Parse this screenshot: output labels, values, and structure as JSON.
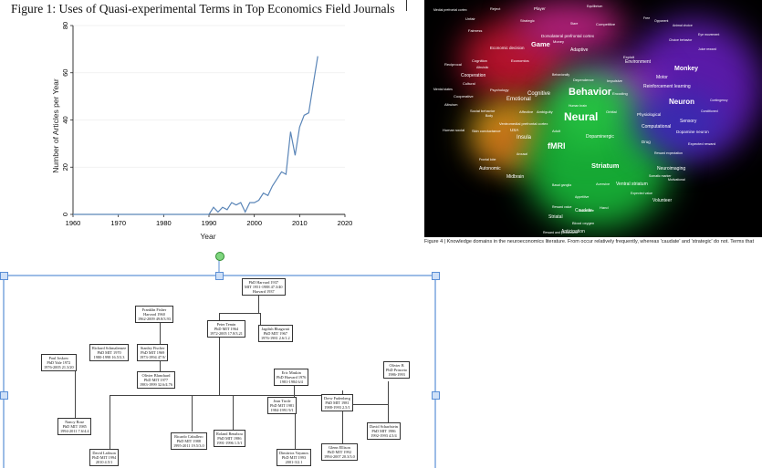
{
  "figure1": {
    "title": "Figure 1: Uses of Quasi-experimental Terms in Top Economics Field Journals",
    "chart_data": {
      "type": "line",
      "xlabel": "Year",
      "ylabel": "Number of Articles per Year",
      "xlim": [
        1960,
        2020
      ],
      "ylim": [
        0,
        80
      ],
      "x_ticks": [
        1960,
        1970,
        1980,
        1990,
        2000,
        2010,
        2020
      ],
      "y_ticks": [
        0,
        20,
        40,
        60,
        80
      ],
      "grid": true,
      "x": [
        1960,
        1965,
        1970,
        1975,
        1980,
        1985,
        1990,
        1991,
        1992,
        1993,
        1994,
        1995,
        1996,
        1997,
        1998,
        1999,
        2000,
        2001,
        2002,
        2003,
        2004,
        2005,
        2006,
        2007,
        2008,
        2009,
        2010,
        2011,
        2012,
        2013,
        2014
      ],
      "values": [
        0,
        0,
        0,
        0,
        0,
        0,
        0,
        3,
        1,
        3,
        2,
        5,
        4,
        5,
        1,
        5,
        5,
        6,
        9,
        8,
        12,
        15,
        18,
        17,
        35,
        25,
        37,
        42,
        43,
        55,
        67
      ]
    }
  },
  "figure2": {
    "terms": [
      {
        "text": "Reject",
        "size": 4
      },
      {
        "text": "Player",
        "size": 4.5
      },
      {
        "text": "Equilibrium",
        "size": 3.5
      },
      {
        "text": "Unfair",
        "size": 4
      },
      {
        "text": "Strategic",
        "size": 4
      },
      {
        "text": "Stare",
        "size": 3.5
      },
      {
        "text": "Competitive",
        "size": 4
      },
      {
        "text": "Free",
        "size": 3.5
      },
      {
        "text": "Opponent",
        "size": 3.5
      },
      {
        "text": "Animal choice",
        "size": 3.5
      },
      {
        "text": "Fairness",
        "size": 4
      },
      {
        "text": "Dorsolateral prefrontal cortex",
        "size": 4.5
      },
      {
        "text": "Eye movement",
        "size": 3.5
      },
      {
        "text": "Choice behavior",
        "size": 3.5
      },
      {
        "text": "Game",
        "size": 7.5
      },
      {
        "text": "Money",
        "size": 4
      },
      {
        "text": "Economic decision",
        "size": 4.5
      },
      {
        "text": "Adaptive",
        "size": 5
      },
      {
        "text": "Juice reward",
        "size": 3.5
      },
      {
        "text": "Cognition",
        "size": 4
      },
      {
        "text": "Economics",
        "size": 4
      },
      {
        "text": "Exploit",
        "size": 4
      },
      {
        "text": "Reciprocal",
        "size": 4
      },
      {
        "text": "Altruistic",
        "size": 3.5
      },
      {
        "text": "Environment",
        "size": 5
      },
      {
        "text": "Monkey",
        "size": 7
      },
      {
        "text": "Cooperation",
        "size": 5
      },
      {
        "text": "Behaviorally",
        "size": 3.5
      },
      {
        "text": "Dependence",
        "size": 4
      },
      {
        "text": "Impulsive",
        "size": 4
      },
      {
        "text": "Motor",
        "size": 5
      },
      {
        "text": "Cultural",
        "size": 4
      },
      {
        "text": "Reinforcement learning",
        "size": 5
      },
      {
        "text": "Mental states",
        "size": 3.5
      },
      {
        "text": "Psychology",
        "size": 4
      },
      {
        "text": "Cognitive",
        "size": 6
      },
      {
        "text": "Behavior",
        "size": 11
      },
      {
        "text": "Emotional",
        "size": 6
      },
      {
        "text": "Encoding",
        "size": 4
      },
      {
        "text": "Cooperative",
        "size": 4
      },
      {
        "text": "Contingency",
        "size": 3.5
      },
      {
        "text": "Human brain",
        "size": 3.5
      },
      {
        "text": "Neuron",
        "size": 8
      },
      {
        "text": "Altruism",
        "size": 4
      },
      {
        "text": "Social behavior",
        "size": 4
      },
      {
        "text": "Affective",
        "size": 4
      },
      {
        "text": "Ambiguity",
        "size": 4
      },
      {
        "text": "Orbital",
        "size": 4
      },
      {
        "text": "Body",
        "size": 3.5
      },
      {
        "text": "Physiological",
        "size": 4.5
      },
      {
        "text": "Neural",
        "size": 12
      },
      {
        "text": "Conditioned",
        "size": 3.5
      },
      {
        "text": "Ventromedial prefrontal cortex",
        "size": 4
      },
      {
        "text": "Sensory",
        "size": 5
      },
      {
        "text": "Human social",
        "size": 4
      },
      {
        "text": "Skin conductance",
        "size": 4
      },
      {
        "text": "USA",
        "size": 4.5
      },
      {
        "text": "Adult",
        "size": 4
      },
      {
        "text": "Computational",
        "size": 5
      },
      {
        "text": "Dopamine neuron",
        "size": 4.5
      },
      {
        "text": "Insula",
        "size": 6
      },
      {
        "text": "Dopaminergic",
        "size": 5
      },
      {
        "text": "Drug",
        "size": 4.5
      },
      {
        "text": "Expected reward",
        "size": 4
      },
      {
        "text": "fMRI",
        "size": 9
      },
      {
        "text": "Arousal",
        "size": 3.5
      },
      {
        "text": "Reward expectation",
        "size": 3.5
      },
      {
        "text": "Frontal lobe",
        "size": 3.5
      },
      {
        "text": "Striatum",
        "size": 7.5
      },
      {
        "text": "Autonomic",
        "size": 5
      },
      {
        "text": "Neuroimaging",
        "size": 5
      },
      {
        "text": "Midbrain",
        "size": 5
      },
      {
        "text": "Somatic marker",
        "size": 3.5
      },
      {
        "text": "Motivational",
        "size": 3.5
      },
      {
        "text": "Basal ganglia",
        "size": 3.5
      },
      {
        "text": "Aversive",
        "size": 4
      },
      {
        "text": "Ventral striatum",
        "size": 5
      },
      {
        "text": "Expected value",
        "size": 3.5
      },
      {
        "text": "Appetitive",
        "size": 3.5
      },
      {
        "text": "Volunteer",
        "size": 5
      },
      {
        "text": "Reward value",
        "size": 3.5
      },
      {
        "text": "Caudate",
        "size": 5
      },
      {
        "text": "Hand",
        "size": 4
      },
      {
        "text": "Striatal",
        "size": 5
      },
      {
        "text": "Incentive",
        "size": 4
      },
      {
        "text": "Blood oxygen",
        "size": 4
      },
      {
        "text": "Anticipation",
        "size": 5
      },
      {
        "text": "Reward and punishment",
        "size": 3.5
      },
      {
        "text": "Medial prefrontal cortex",
        "size": 3.5
      }
    ],
    "caption": "Figure 4 | Knowledge domains in the neuroeconomics literature. From     occur relatively frequently, whereas 'caudate' and 'strategic' do not. Terms that"
  },
  "figure3": {
    "boxes": [
      {
        "l1": "PhD Harvard 1937",
        "l2": "MIT 1951-1988 47.3/40",
        "l3": "Harvard 1937"
      },
      {
        "l1": "Franklin Fisher",
        "l2": "Harvard 1960",
        "l3": "1962-2009 49.8/3.93"
      },
      {
        "l1": "Peter Temin",
        "l2": "PhD MIT 1964",
        "l3": "1972-2005 17.8/3.21"
      },
      {
        "l1": "Jagdish Bhagwati",
        "l2": "PhD MIT 1967",
        "l3": "1976-1981 2.6/1.2"
      },
      {
        "l1": "Richard Schmalensee",
        "l2": "PhD MIT 1970",
        "l3": "1980-1998 16.5/3.3"
      },
      {
        "l1": "Stanley Fischer",
        "l2": "PhD MIT 1969",
        "l3": "1973-1994 47.9/"
      },
      {
        "l1": "Paul Joskow",
        "l2": "PhD Yale 1972",
        "l3": "1976-2005 21.3/20"
      },
      {
        "l1": "Olivier Blanchard",
        "l2": "PhD MIT 1977",
        "l3": "1983-1999 32.6/4.76"
      },
      {
        "l1": "Eric Maskin",
        "l2": "PhD Harvard 1976",
        "l3": "1981-1984 6/4"
      },
      {
        "l1": "Olivier B",
        "l2": "PhD Princeto",
        "l3": "1986-1993"
      },
      {
        "l1": "Jean Tirole",
        "l2": "PhD MIT 1981",
        "l3": "1984-1991 9/1"
      },
      {
        "l1": "Drew Fudenberg",
        "l2": "PhD MIT 1981",
        "l3": "1988-1993 2.5/1"
      },
      {
        "l1": "Nancy Rose",
        "l2": "PhD MIT 1985",
        "l3": "1994-2011 7.6/4.4"
      },
      {
        "l1": "Ricardo Caballero",
        "l2": "PhD MIT 1988",
        "l3": "1995-2011 19.5/3.0"
      },
      {
        "l1": "Roland Benabou",
        "l2": "PhD MIT 1986",
        "l3": "1991-1996 1.5/1"
      },
      {
        "l1": "David Scharfstein",
        "l2": "PhD MIT 1986",
        "l3": "1992-1993 4.5/4"
      },
      {
        "l1": "Glenn Ellison",
        "l2": "PhD MIT 1992",
        "l3": "1994-2007 20.3/3.0"
      },
      {
        "l1": "Dimitrios Vayanos",
        "l2": "PhD MIT 1993",
        "l3": "2001-3/2.1"
      },
      {
        "l1": "David Laibson",
        "l2": "PhD MIT 1994",
        "l3": "2010 4.5/1"
      }
    ]
  }
}
